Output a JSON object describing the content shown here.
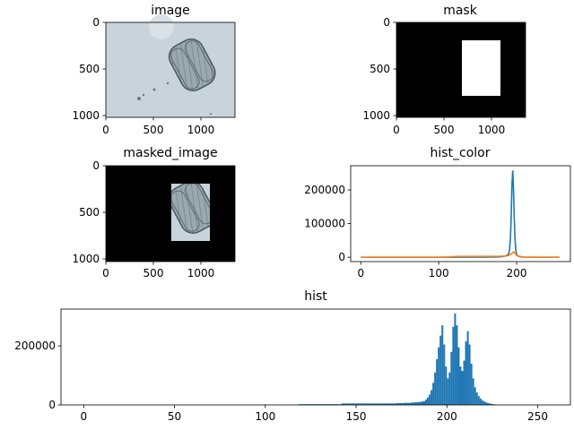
{
  "panels": {
    "image": {
      "title": "image",
      "xticks": [
        "0",
        "500",
        "1000"
      ],
      "yticks": [
        "0",
        "500",
        "1000"
      ],
      "palette": {
        "background": "#c9d3db",
        "object_fill": "#9aa8b0",
        "object_edge": "#4a5a62"
      }
    },
    "mask": {
      "title": "mask",
      "xticks": [
        "0",
        "500",
        "1000"
      ],
      "yticks": [
        "0",
        "500",
        "1000"
      ],
      "palette": {
        "background": "#000000",
        "roi": "#ffffff"
      }
    },
    "masked_image": {
      "title": "masked_image",
      "xticks": [
        "0",
        "500",
        "1000"
      ],
      "yticks": [
        "0",
        "500",
        "1000"
      ],
      "palette": {
        "background": "#000000",
        "roi": "#c9d3db",
        "object_fill": "#9aa8b0",
        "object_edge": "#4a5a62"
      }
    }
  },
  "image_extent": {
    "width": 1360,
    "height": 1024
  },
  "mask_roi": {
    "x": [
      690,
      1090
    ],
    "y": [
      200,
      800
    ]
  },
  "chart_data": [
    {
      "type": "line",
      "title": "hist_color",
      "xticks": [
        "0",
        "100",
        "200"
      ],
      "yticks": [
        "0",
        "100000",
        "200000"
      ],
      "xlim": [
        -13,
        269
      ],
      "ylim": [
        -13000,
        272000
      ],
      "series": [
        {
          "color": "#1f77b4",
          "x": [
            0,
            100,
            170,
            180,
            185,
            188,
            190,
            191,
            192,
            193,
            194,
            195,
            196,
            197,
            198,
            199,
            200,
            202,
            205,
            210,
            230,
            255
          ],
          "y": [
            0,
            0,
            500,
            1500,
            3000,
            6000,
            12000,
            25000,
            55000,
            120000,
            215000,
            258000,
            200000,
            110000,
            50000,
            20000,
            8000,
            3000,
            1000,
            300,
            0,
            0
          ]
        },
        {
          "color": "#ff7f0e",
          "x": [
            0,
            100,
            110,
            120,
            150,
            180,
            185,
            190,
            193,
            196,
            198,
            200,
            203,
            206,
            210,
            230,
            255
          ],
          "y": [
            0,
            0,
            500,
            2000,
            2500,
            3000,
            3500,
            5000,
            10000,
            16000,
            11000,
            5500,
            3000,
            1500,
            500,
            0,
            0
          ]
        }
      ]
    },
    {
      "type": "bar",
      "title": "hist",
      "xticks": [
        "0",
        "50",
        "100",
        "150",
        "200",
        "250"
      ],
      "yticks": [
        "0",
        "200000"
      ],
      "xlim": [
        -12.5,
        268
      ],
      "ylim": [
        0,
        325000
      ],
      "color": "#1f77b4",
      "bins": [
        [
          118,
          2500
        ],
        [
          120,
          2500
        ],
        [
          122,
          2500
        ],
        [
          124,
          2500
        ],
        [
          126,
          2500
        ],
        [
          128,
          2500
        ],
        [
          130,
          2500
        ],
        [
          132,
          2500
        ],
        [
          134,
          2500
        ],
        [
          136,
          2500
        ],
        [
          138,
          2500
        ],
        [
          140,
          2500
        ],
        [
          142,
          5000
        ],
        [
          144,
          5000
        ],
        [
          146,
          5000
        ],
        [
          148,
          5000
        ],
        [
          150,
          5000
        ],
        [
          152,
          5000
        ],
        [
          154,
          5000
        ],
        [
          156,
          5000
        ],
        [
          158,
          5000
        ],
        [
          160,
          5000
        ],
        [
          162,
          5000
        ],
        [
          164,
          5000
        ],
        [
          166,
          5000
        ],
        [
          168,
          5000
        ],
        [
          170,
          5000
        ],
        [
          172,
          6000
        ],
        [
          174,
          6000
        ],
        [
          176,
          7000
        ],
        [
          178,
          7000
        ],
        [
          180,
          8000
        ],
        [
          182,
          9000
        ],
        [
          184,
          10000
        ],
        [
          186,
          12000
        ],
        [
          188,
          18000
        ],
        [
          189,
          25000
        ],
        [
          190,
          35000
        ],
        [
          191,
          50000
        ],
        [
          192,
          75000
        ],
        [
          193,
          110000
        ],
        [
          194,
          155000
        ],
        [
          195,
          195000
        ],
        [
          196,
          235000
        ],
        [
          197,
          270000
        ],
        [
          198,
          205000
        ],
        [
          199,
          130000
        ],
        [
          200,
          90000
        ],
        [
          201,
          110000
        ],
        [
          202,
          180000
        ],
        [
          203,
          265000
        ],
        [
          204,
          310000
        ],
        [
          205,
          270000
        ],
        [
          206,
          195000
        ],
        [
          207,
          130000
        ],
        [
          208,
          115000
        ],
        [
          209,
          150000
        ],
        [
          210,
          215000
        ],
        [
          211,
          250000
        ],
        [
          212,
          205000
        ],
        [
          213,
          140000
        ],
        [
          214,
          90000
        ],
        [
          215,
          60000
        ],
        [
          216,
          42000
        ],
        [
          217,
          30000
        ],
        [
          218,
          22000
        ],
        [
          219,
          16000
        ],
        [
          220,
          12000
        ],
        [
          221,
          9000
        ],
        [
          222,
          7000
        ],
        [
          223,
          5000
        ],
        [
          224,
          3500
        ],
        [
          225,
          2500
        ],
        [
          226,
          1800
        ],
        [
          227,
          1200
        ],
        [
          228,
          800
        ],
        [
          229,
          500
        ]
      ]
    }
  ]
}
